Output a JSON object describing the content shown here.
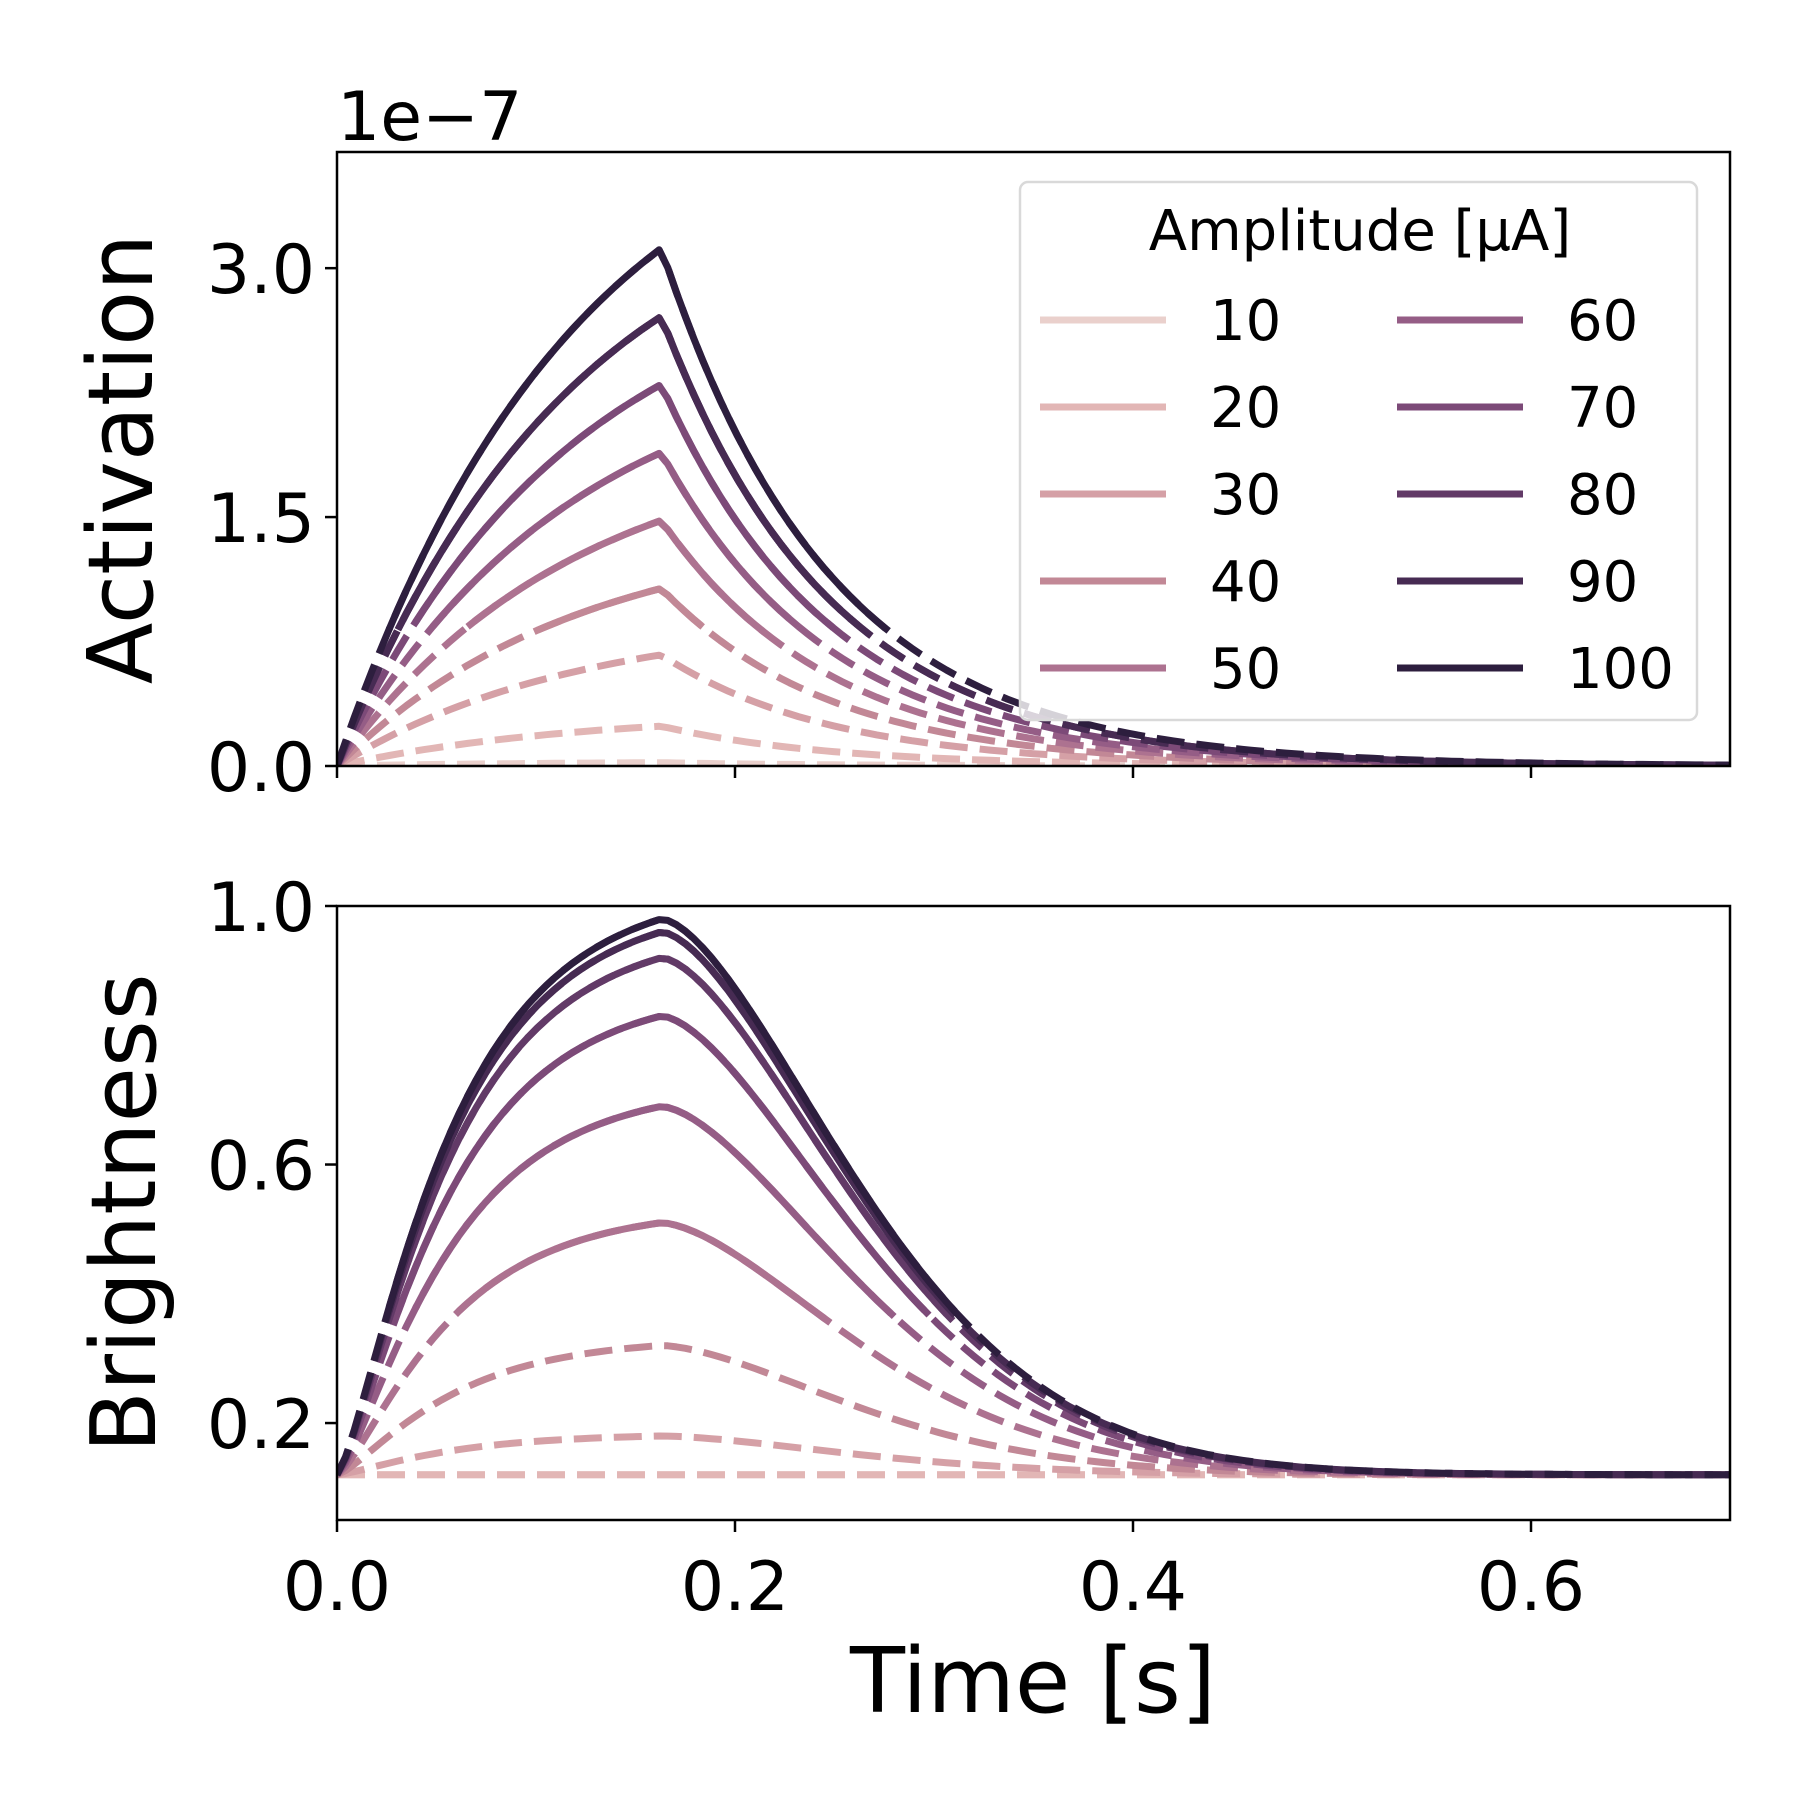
{
  "chart_data": [
    {
      "type": "line",
      "panel": "top",
      "ylabel": "Activation",
      "offset_label": "1e−7",
      "scale": 1e-07,
      "xlim": [
        0.0,
        0.7
      ],
      "ylim": [
        0.0,
        3.7
      ],
      "yticks": [
        0.0,
        1.5,
        3.0
      ],
      "ytick_labels": [
        "0.0",
        "1.5",
        "3.0"
      ],
      "xticks": [
        0.0,
        0.2,
        0.4,
        0.6
      ],
      "show_xtick_labels": false,
      "grid": false,
      "legend": {
        "title": "Amplitude [μA]",
        "placement": "upper right",
        "columns": 2
      },
      "pulse_end": 0.163,
      "series": [
        {
          "name": "10",
          "color": "#ead0cc",
          "peak": 0.02,
          "x": [
            0,
            0.163,
            0.3,
            0.4,
            0.5,
            0.6,
            0.7
          ],
          "y": [
            0,
            0.02,
            0.01,
            0.005,
            0.002,
            0.001,
            0.0
          ]
        },
        {
          "name": "20",
          "color": "#e2b6b5",
          "peak": 0.24,
          "x": [
            0,
            0.163,
            0.3,
            0.4,
            0.5,
            0.6,
            0.7
          ],
          "y": [
            0,
            0.24,
            0.09,
            0.04,
            0.02,
            0.008,
            0.004
          ]
        },
        {
          "name": "30",
          "color": "#d5a0a6",
          "peak": 0.67,
          "x": [
            0,
            0.163,
            0.3,
            0.4,
            0.5,
            0.6,
            0.7
          ],
          "y": [
            0,
            0.67,
            0.25,
            0.12,
            0.05,
            0.025,
            0.012
          ]
        },
        {
          "name": "40",
          "color": "#c28896",
          "peak": 1.07,
          "x": [
            0,
            0.163,
            0.3,
            0.4,
            0.5,
            0.6,
            0.7
          ],
          "y": [
            0,
            1.07,
            0.4,
            0.19,
            0.09,
            0.04,
            0.02
          ]
        },
        {
          "name": "50",
          "color": "#ad7290",
          "peak": 1.48,
          "x": [
            0,
            0.163,
            0.3,
            0.4,
            0.5,
            0.6,
            0.7
          ],
          "y": [
            0,
            1.48,
            0.55,
            0.26,
            0.12,
            0.055,
            0.026
          ]
        },
        {
          "name": "60",
          "color": "#955d86",
          "peak": 1.89,
          "x": [
            0,
            0.163,
            0.3,
            0.4,
            0.5,
            0.6,
            0.7
          ],
          "y": [
            0,
            1.89,
            0.7,
            0.33,
            0.15,
            0.07,
            0.033
          ]
        },
        {
          "name": "70",
          "color": "#7c4a78",
          "peak": 2.3,
          "x": [
            0,
            0.163,
            0.3,
            0.4,
            0.5,
            0.6,
            0.7
          ],
          "y": [
            0,
            2.3,
            0.86,
            0.4,
            0.19,
            0.085,
            0.04
          ]
        },
        {
          "name": "80",
          "color": "#623a67",
          "peak": 2.71,
          "x": [
            0,
            0.163,
            0.3,
            0.4,
            0.5,
            0.6,
            0.7
          ],
          "y": [
            0,
            2.71,
            1.01,
            0.47,
            0.22,
            0.1,
            0.047
          ]
        },
        {
          "name": "90",
          "color": "#472b53",
          "peak": 2.71,
          "x": [
            0,
            0.163,
            0.3,
            0.4,
            0.5,
            0.6,
            0.7
          ],
          "y": [
            0,
            2.71,
            1.01,
            0.47,
            0.22,
            0.1,
            0.047
          ]
        },
        {
          "name": "100",
          "color": "#2d1e3e",
          "peak": 3.12,
          "x": [
            0,
            0.163,
            0.3,
            0.4,
            0.5,
            0.6,
            0.7
          ],
          "y": [
            0,
            3.12,
            1.16,
            0.54,
            0.25,
            0.115,
            0.054
          ]
        }
      ]
    },
    {
      "type": "line",
      "panel": "bottom",
      "ylabel": "Brightness",
      "xlabel": "Time [s]",
      "xlim": [
        0.0,
        0.7
      ],
      "ylim": [
        0.05,
        1.0
      ],
      "yticks": [
        0.2,
        0.6,
        1.0
      ],
      "ytick_labels": [
        "0.2",
        "0.6",
        "1.0"
      ],
      "xticks": [
        0.0,
        0.2,
        0.4,
        0.6
      ],
      "xtick_labels": [
        "0.0",
        "0.2",
        "0.4",
        "0.6"
      ],
      "grid": false,
      "pulse_end": 0.163,
      "baseline": 0.12,
      "series": [
        {
          "name": "10",
          "color": "#ead0cc",
          "peak": 0.12,
          "x": [
            0,
            0.163,
            0.3,
            0.4,
            0.5,
            0.6,
            0.7
          ],
          "y": [
            0.12,
            0.12,
            0.12,
            0.12,
            0.12,
            0.12,
            0.12
          ]
        },
        {
          "name": "20",
          "color": "#e2b6b5",
          "peak": 0.12,
          "x": [
            0,
            0.163,
            0.3,
            0.4,
            0.5,
            0.6,
            0.7
          ],
          "y": [
            0.12,
            0.12,
            0.12,
            0.12,
            0.12,
            0.12,
            0.12
          ]
        },
        {
          "name": "30",
          "color": "#d5a0a6",
          "peak": 0.18,
          "x": [
            0,
            0.163,
            0.3,
            0.4,
            0.5,
            0.6,
            0.7
          ],
          "y": [
            0.12,
            0.18,
            0.14,
            0.13,
            0.125,
            0.122,
            0.12
          ]
        },
        {
          "name": "40",
          "color": "#c28896",
          "peak": 0.32,
          "x": [
            0,
            0.163,
            0.3,
            0.4,
            0.5,
            0.6,
            0.7
          ],
          "y": [
            0.12,
            0.32,
            0.19,
            0.15,
            0.13,
            0.125,
            0.12
          ]
        },
        {
          "name": "50",
          "color": "#ad7290",
          "peak": 0.51,
          "x": [
            0,
            0.163,
            0.3,
            0.4,
            0.5,
            0.6,
            0.7
          ],
          "y": [
            0.12,
            0.51,
            0.26,
            0.17,
            0.14,
            0.127,
            0.121
          ]
        },
        {
          "name": "60",
          "color": "#955d86",
          "peak": 0.69,
          "x": [
            0,
            0.163,
            0.3,
            0.4,
            0.5,
            0.6,
            0.7
          ],
          "y": [
            0.12,
            0.69,
            0.33,
            0.19,
            0.145,
            0.13,
            0.122
          ]
        },
        {
          "name": "70",
          "color": "#7c4a78",
          "peak": 0.83,
          "x": [
            0,
            0.163,
            0.3,
            0.4,
            0.5,
            0.6,
            0.7
          ],
          "y": [
            0.12,
            0.83,
            0.4,
            0.21,
            0.15,
            0.132,
            0.123
          ]
        },
        {
          "name": "80",
          "color": "#623a67",
          "peak": 0.92,
          "x": [
            0,
            0.163,
            0.3,
            0.4,
            0.5,
            0.6,
            0.7
          ],
          "y": [
            0.12,
            0.92,
            0.46,
            0.23,
            0.16,
            0.134,
            0.124
          ]
        },
        {
          "name": "90",
          "color": "#472b53",
          "peak": 0.96,
          "x": [
            0,
            0.163,
            0.3,
            0.4,
            0.5,
            0.6,
            0.7
          ],
          "y": [
            0.12,
            0.96,
            0.5,
            0.25,
            0.165,
            0.136,
            0.124
          ]
        },
        {
          "name": "100",
          "color": "#2d1e3e",
          "peak": 0.98,
          "x": [
            0,
            0.163,
            0.3,
            0.4,
            0.5,
            0.6,
            0.7
          ],
          "y": [
            0.12,
            0.98,
            0.55,
            0.27,
            0.17,
            0.138,
            0.125
          ]
        }
      ]
    }
  ]
}
